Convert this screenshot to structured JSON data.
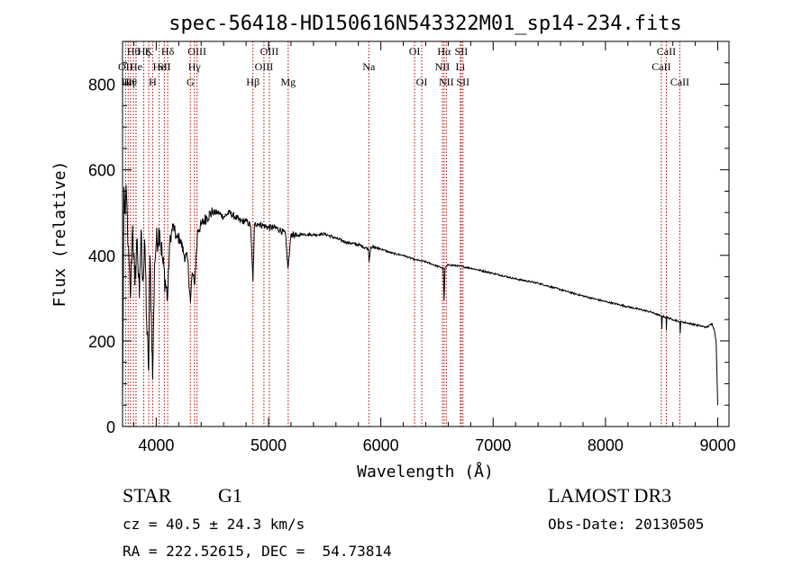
{
  "chart_data": {
    "type": "line",
    "title": "spec-56418-HD150616N543322M01_sp14-234.fits",
    "xlabel": "Wavelength (Å)",
    "ylabel": "Flux (relative)",
    "xlim": [
      3700,
      9100
    ],
    "ylim": [
      0,
      900
    ],
    "x_ticks": [
      4000,
      5000,
      6000,
      7000,
      8000,
      9000
    ],
    "y_ticks": [
      0,
      200,
      400,
      600,
      800
    ],
    "series": [
      {
        "name": "flux",
        "anchors": [
          [
            3700,
            50
          ],
          [
            3712,
            560
          ],
          [
            3720,
            500
          ],
          [
            3735,
            540
          ],
          [
            3750,
            420
          ],
          [
            3770,
            300
          ],
          [
            3790,
            470
          ],
          [
            3810,
            330
          ],
          [
            3830,
            440
          ],
          [
            3850,
            300
          ],
          [
            3865,
            460
          ],
          [
            3880,
            340
          ],
          [
            3900,
            420
          ],
          [
            3915,
            240
          ],
          [
            3933,
            130
          ],
          [
            3945,
            400
          ],
          [
            3968,
            110
          ],
          [
            3985,
            380
          ],
          [
            4000,
            430
          ],
          [
            4030,
            460
          ],
          [
            4060,
            380
          ],
          [
            4101,
            300
          ],
          [
            4120,
            430
          ],
          [
            4150,
            470
          ],
          [
            4180,
            440
          ],
          [
            4210,
            440
          ],
          [
            4250,
            400
          ],
          [
            4280,
            390
          ],
          [
            4305,
            290
          ],
          [
            4320,
            360
          ],
          [
            4340,
            330
          ],
          [
            4370,
            460
          ],
          [
            4400,
            470
          ],
          [
            4450,
            490
          ],
          [
            4500,
            500
          ],
          [
            4550,
            500
          ],
          [
            4600,
            490
          ],
          [
            4650,
            500
          ],
          [
            4700,
            490
          ],
          [
            4750,
            480
          ],
          [
            4800,
            480
          ],
          [
            4840,
            470
          ],
          [
            4861,
            340
          ],
          [
            4875,
            470
          ],
          [
            4900,
            475
          ],
          [
            4950,
            470
          ],
          [
            5000,
            465
          ],
          [
            5050,
            465
          ],
          [
            5100,
            460
          ],
          [
            5150,
            450
          ],
          [
            5172,
            370
          ],
          [
            5185,
            400
          ],
          [
            5200,
            450
          ],
          [
            5250,
            445
          ],
          [
            5300,
            450
          ],
          [
            5400,
            448
          ],
          [
            5500,
            450
          ],
          [
            5600,
            440
          ],
          [
            5700,
            430
          ],
          [
            5800,
            425
          ],
          [
            5890,
            415
          ],
          [
            5895,
            385
          ],
          [
            5910,
            420
          ],
          [
            6000,
            415
          ],
          [
            6100,
            405
          ],
          [
            6200,
            400
          ],
          [
            6300,
            390
          ],
          [
            6400,
            385
          ],
          [
            6500,
            375
          ],
          [
            6555,
            370
          ],
          [
            6563,
            295
          ],
          [
            6572,
            370
          ],
          [
            6600,
            378
          ],
          [
            6700,
            375
          ],
          [
            6800,
            370
          ],
          [
            7000,
            358
          ],
          [
            7200,
            345
          ],
          [
            7400,
            335
          ],
          [
            7600,
            320
          ],
          [
            7800,
            305
          ],
          [
            8000,
            292
          ],
          [
            8200,
            280
          ],
          [
            8400,
            268
          ],
          [
            8498,
            258
          ],
          [
            8502,
            228
          ],
          [
            8506,
            258
          ],
          [
            8540,
            255
          ],
          [
            8542,
            225
          ],
          [
            8546,
            255
          ],
          [
            8600,
            250
          ],
          [
            8662,
            245
          ],
          [
            8666,
            218
          ],
          [
            8670,
            245
          ],
          [
            8800,
            238
          ],
          [
            8900,
            232
          ],
          [
            8950,
            240
          ],
          [
            8970,
            225
          ],
          [
            8985,
            200
          ],
          [
            8993,
            120
          ],
          [
            9000,
            50
          ]
        ]
      }
    ],
    "lines": [
      {
        "wl": 3727,
        "label": "OII",
        "row": 2
      },
      {
        "wl": 3750,
        "label": "Hη",
        "row": 3
      },
      {
        "wl": 3771,
        "label": "Hθ",
        "row": 3
      },
      {
        "wl": 3797,
        "label": "Hθ",
        "row": 1
      },
      {
        "wl": 3820,
        "label": "He",
        "row": 2
      },
      {
        "wl": 3889,
        "label": "Hζ",
        "row": 1
      },
      {
        "wl": 3933,
        "label": "K",
        "row": 1
      },
      {
        "wl": 3968,
        "label": "H",
        "row": 3
      },
      {
        "wl": 4026,
        "label": "He",
        "row": 2
      },
      {
        "wl": 4072,
        "label": "SII",
        "row": 2
      },
      {
        "wl": 4102,
        "label": "Hδ",
        "row": 1
      },
      {
        "wl": 4304,
        "label": "G",
        "row": 3
      },
      {
        "wl": 4340,
        "label": "Hγ",
        "row": 2
      },
      {
        "wl": 4363,
        "label": "OIII",
        "row": 1
      },
      {
        "wl": 4861,
        "label": "Hβ",
        "row": 3
      },
      {
        "wl": 4959,
        "label": "OIII",
        "row": 2
      },
      {
        "wl": 5007,
        "label": "OIII",
        "row": 1
      },
      {
        "wl": 5175,
        "label": "Mg",
        "row": 3
      },
      {
        "wl": 5893,
        "label": "Na",
        "row": 2
      },
      {
        "wl": 6300,
        "label": "OI",
        "row": 1
      },
      {
        "wl": 6364,
        "label": "OI",
        "row": 3
      },
      {
        "wl": 6548,
        "label": "NII",
        "row": 2
      },
      {
        "wl": 6563,
        "label": "Hα",
        "row": 1
      },
      {
        "wl": 6583,
        "label": "NII",
        "row": 3
      },
      {
        "wl": 6708,
        "label": "Li",
        "row": 2
      },
      {
        "wl": 6716,
        "label": "SII",
        "row": 1
      },
      {
        "wl": 6731,
        "label": "SII",
        "row": 3
      },
      {
        "wl": 8498,
        "label": "CaII",
        "row": 2
      },
      {
        "wl": 8542,
        "label": "CaII",
        "row": 1
      },
      {
        "wl": 8662,
        "label": "CaII",
        "row": 3
      }
    ]
  },
  "info": {
    "object_class": "STAR",
    "subclass": "G1",
    "survey": "LAMOST DR3",
    "redshift": "cz = 40.5 ± 24.3 km/s",
    "obs_date": "Obs-Date: 20130505",
    "coords": "RA = 222.52615, DEC =  54.73814"
  }
}
